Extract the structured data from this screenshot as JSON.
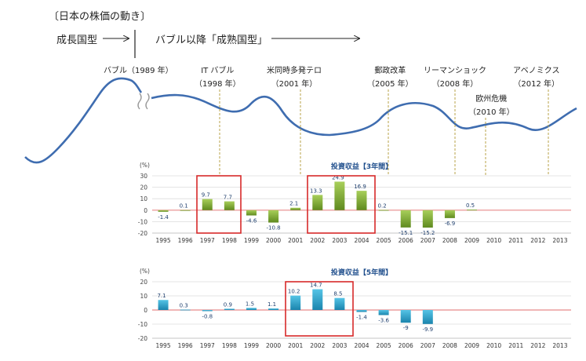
{
  "title": "〔日本の株価の動き〕",
  "phases": [
    "成長国型",
    "バブル以降「成熟国型」"
  ],
  "events": [
    {
      "label": "バブル（1989 年）",
      "year": ""
    },
    {
      "label": "IT バブル",
      "year": "（1998 年）"
    },
    {
      "label": "米同時多発テロ",
      "year": "（2001 年）"
    },
    {
      "label": "郵政改革",
      "year": "（2005 年）"
    },
    {
      "label": "リーマンショック",
      "year": "（2008 年）"
    },
    {
      "label": "欧州危機",
      "year": "（2010 年）"
    },
    {
      "label": "アベノミクス",
      "year": "（2012 年）"
    }
  ],
  "colors": {
    "bar3": "green-gradient",
    "bar5": "blue-gradient",
    "zero_line": "#e88a8a",
    "highlight": "#d72a2a",
    "curve": "#3f6db0"
  },
  "chart_data": [
    {
      "type": "bar",
      "title": "投資収益【3年間】",
      "unit": "(%)",
      "categories": [
        "1995",
        "1996",
        "1997",
        "1998",
        "1999",
        "2000",
        "2001",
        "2002",
        "2003",
        "2004",
        "2005",
        "2006",
        "2007",
        "2008",
        "2009",
        "2010",
        "2011",
        "2012",
        "2013"
      ],
      "values": [
        -1.4,
        0.1,
        9.7,
        7.7,
        -4.6,
        -10.8,
        2.1,
        13.3,
        24.9,
        16.9,
        0.2,
        -15.1,
        -15.2,
        -6.9,
        0.5,
        null,
        null,
        null,
        null
      ],
      "ylim": [
        -20,
        30
      ],
      "yticks": [
        30,
        20,
        10,
        0,
        -10,
        -20
      ]
    },
    {
      "type": "bar",
      "title": "投資収益【5年間】",
      "unit": "(%)",
      "categories": [
        "1995",
        "1996",
        "1997",
        "1998",
        "1999",
        "2000",
        "2001",
        "2002",
        "2003",
        "2004",
        "2005",
        "2006",
        "2007",
        "2008",
        "2009",
        "2010",
        "2011",
        "2012",
        "2013"
      ],
      "values": [
        7.1,
        0.3,
        -0.8,
        0.9,
        1.5,
        1.1,
        10.2,
        14.7,
        8.5,
        -1.4,
        -3.6,
        -9,
        -9.9,
        null,
        null,
        null,
        null,
        null,
        null
      ],
      "ylim": [
        -20,
        20
      ],
      "yticks": [
        20,
        10,
        0,
        -10,
        -20
      ]
    }
  ]
}
